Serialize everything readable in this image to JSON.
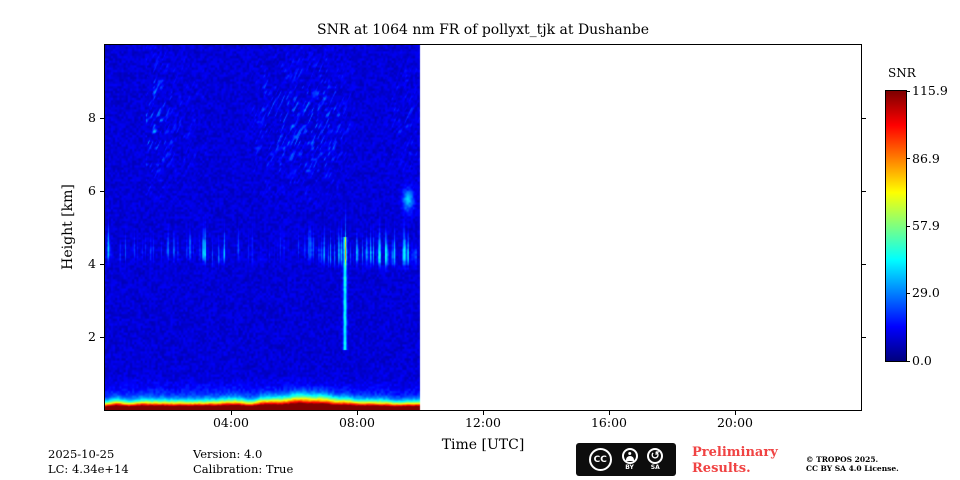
{
  "chart_data": {
    "type": "heatmap",
    "title": "SNR at 1064 nm FR of pollyxt_tjk at Dushanbe",
    "xlabel": "Time [UTC]",
    "ylabel": "Height [km]",
    "x_range_hours": [
      0,
      24
    ],
    "x_ticks": [
      {
        "hour": 4,
        "label": "04:00"
      },
      {
        "hour": 8,
        "label": "08:00"
      },
      {
        "hour": 12,
        "label": "12:00"
      },
      {
        "hour": 16,
        "label": "16:00"
      },
      {
        "hour": 20,
        "label": "20:00"
      }
    ],
    "y_range_km": [
      0,
      10
    ],
    "y_ticks": [
      {
        "km": 2,
        "label": "2"
      },
      {
        "km": 4,
        "label": "4"
      },
      {
        "km": 6,
        "label": "6"
      },
      {
        "km": 8,
        "label": "8"
      }
    ],
    "data_coverage_hours": [
      0,
      10
    ],
    "no_data_color": "#ffffff",
    "colormap": "jet",
    "colorbar": {
      "label": "SNR",
      "min": 0.0,
      "max": 115.9,
      "ticks": [
        {
          "value": 115.9,
          "label": "115.9"
        },
        {
          "value": 86.9,
          "label": "86.9"
        },
        {
          "value": 57.9,
          "label": "57.9"
        },
        {
          "value": 29.0,
          "label": "29.0"
        },
        {
          "value": 0.0,
          "label": "0.0"
        }
      ]
    },
    "features": {
      "background_snr_range": [
        5,
        14
      ],
      "surface_layer": {
        "base_km": 0,
        "top_km": 1.0,
        "peak_snr": 115.9,
        "enhanced_hours": [
          5,
          7.5
        ]
      },
      "aerosol_layer": {
        "center_km": 4.2,
        "min_km": 3.6,
        "max_km": 5.2,
        "typical_snr": 45,
        "hours": [
          0,
          10
        ]
      },
      "cirrus_streaks": {
        "min_km": 5.5,
        "max_km": 9.7,
        "typical_snr": 18,
        "hours": [
          1.5,
          10
        ]
      },
      "fall_streak": {
        "hour": 7.6,
        "min_km": 1.7,
        "max_km": 4.7,
        "snr": 38
      },
      "edge_blob": {
        "hour": 9.6,
        "km": 5.8,
        "snr": 26
      }
    }
  },
  "footer": {
    "date": "2025-10-25",
    "lc": "LC: 4.34e+14",
    "version": "Version: 4.0",
    "calibration": "Calibration: True",
    "preliminary": {
      "line1": "Preliminary",
      "line2": "Results.",
      "color": "#f04343"
    },
    "credit": {
      "line1": "© TROPOS 2025.",
      "line2": "CC BY SA 4.0 License."
    },
    "cc_badge": {
      "cc": "CC",
      "by": "BY",
      "sa": "SA",
      "sa_icon": "↺"
    }
  }
}
